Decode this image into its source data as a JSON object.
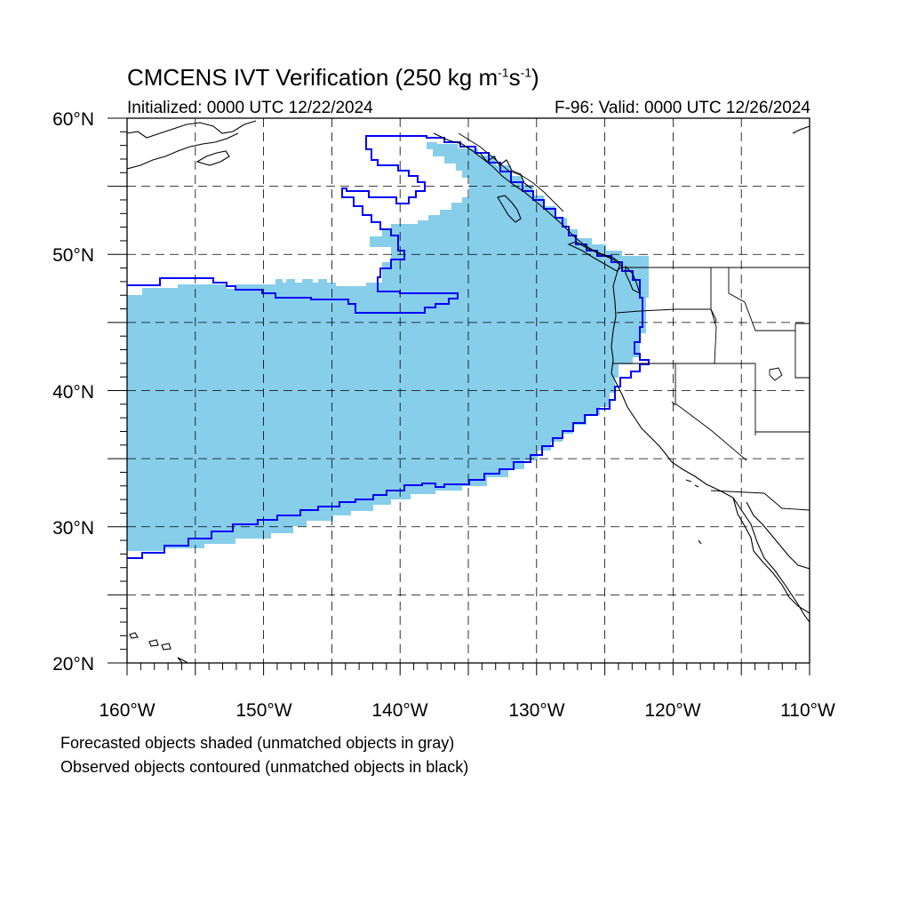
{
  "title": {
    "prefix": "CMCENS IVT Verification (250 kg m",
    "exp1": "-1",
    "mid": "s",
    "exp2": "-1",
    "suffix": ")"
  },
  "subtitle_left": "Initialized: 0000 UTC 12/22/2024",
  "subtitle_right": "F-96: Valid: 0000 UTC 12/26/2024",
  "lat_labels": [
    "60°N",
    "50°N",
    "40°N",
    "30°N",
    "20°N"
  ],
  "lon_labels": [
    "160°W",
    "150°W",
    "140°W",
    "130°W",
    "120°W",
    "110°W"
  ],
  "caption": [
    "Forecasted objects shaded (unmatched objects in gray)",
    "Observed objects contoured (unmatched objects in black)"
  ],
  "colors": {
    "forecast_fill": "#87ceeb",
    "observed_contour": "#0000ff",
    "coastline": "#000000",
    "grid": "#000000"
  },
  "map_extent": {
    "lon": [
      -160,
      -110
    ],
    "lat": [
      20,
      60
    ]
  },
  "grid_spacing_deg": 5,
  "gridlines": "dashed"
}
